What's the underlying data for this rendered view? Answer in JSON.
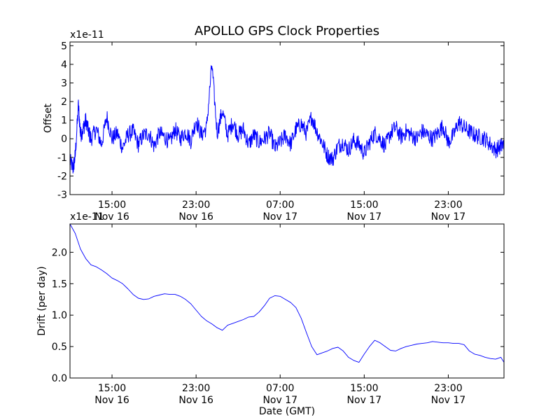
{
  "chart_data": [
    {
      "type": "line",
      "title": "APOLLO GPS Clock Properties",
      "ylabel": "Offset",
      "offset_text": "x1e-11",
      "xlabel": "",
      "x_unit": "hours",
      "xlim": [
        11,
        52.3
      ],
      "ylim": [
        -3,
        5.2
      ],
      "yticks": [
        -3,
        -2,
        -1,
        0,
        1,
        2,
        3,
        4,
        5
      ],
      "ytick_labels": [
        "-3",
        "-2",
        "-1",
        "0",
        "1",
        "2",
        "3",
        "4",
        "5"
      ],
      "xticks": [
        15,
        23,
        31,
        39,
        47
      ],
      "xtick_labels": [
        {
          "time": "15:00",
          "date": "Nov 16"
        },
        {
          "time": "23:00",
          "date": "Nov 16"
        },
        {
          "time": "07:00",
          "date": "Nov 17"
        },
        {
          "time": "15:00",
          "date": "Nov 17"
        },
        {
          "time": "23:00",
          "date": "Nov 17"
        }
      ],
      "color": "#0000ff",
      "grid": false,
      "series": [
        {
          "x": [
            11.0,
            11.3,
            11.5,
            11.8,
            12.0,
            12.3,
            12.5,
            12.8,
            13.0,
            13.5,
            14.0,
            14.5,
            15.0,
            15.5,
            16.0,
            16.5,
            17.0,
            17.5,
            18.0,
            18.5,
            19.0,
            19.5,
            20.0,
            20.5,
            21.0,
            21.5,
            22.0,
            22.5,
            23.0,
            23.5,
            24.0,
            24.5,
            25.0,
            25.5,
            26.0,
            26.5,
            27.0,
            27.5,
            28.0,
            28.5,
            29.0,
            29.5,
            30.0,
            30.5,
            31.0,
            31.5,
            32.0,
            32.5,
            33.0,
            33.5,
            34.0,
            34.5,
            35.0,
            35.5,
            36.0,
            36.5,
            37.0,
            37.5,
            38.0,
            38.5,
            39.0,
            39.5,
            40.0,
            40.5,
            41.0,
            41.5,
            42.0,
            42.5,
            43.0,
            43.5,
            44.0,
            44.5,
            45.0,
            45.5,
            46.0,
            46.5,
            47.0,
            47.5,
            48.0,
            48.5,
            49.0,
            49.5,
            50.0,
            50.5,
            51.0,
            51.5,
            52.0,
            52.3
          ],
          "y": [
            -1.2,
            -1.6,
            -0.9,
            1.8,
            0.2,
            0.6,
            1.0,
            0.3,
            0.0,
            0.5,
            -0.3,
            1.2,
            0.0,
            0.3,
            -0.5,
            0.2,
            0.4,
            -0.3,
            0.2,
            0.3,
            -0.4,
            0.3,
            0.1,
            -0.2,
            0.5,
            0.0,
            0.4,
            -0.1,
            1.0,
            0.2,
            0.6,
            4.0,
            0.3,
            1.5,
            0.2,
            0.9,
            0.2,
            0.5,
            -0.3,
            0.2,
            -0.2,
            0.0,
            0.3,
            -0.5,
            -0.2,
            0.2,
            -0.3,
            0.5,
            0.8,
            0.3,
            1.2,
            0.4,
            -0.2,
            -0.9,
            -1.1,
            -0.4,
            -0.2,
            -0.6,
            -0.1,
            -0.3,
            -0.8,
            -0.2,
            0.3,
            0.0,
            -0.4,
            0.3,
            0.6,
            0.1,
            0.4,
            0.2,
            0.0,
            0.4,
            0.2,
            0.0,
            0.3,
            0.7,
            -0.2,
            0.2,
            0.9,
            0.6,
            0.4,
            0.2,
            0.1,
            0.0,
            -0.3,
            -0.6,
            -0.4,
            -0.3
          ]
        }
      ]
    },
    {
      "type": "line",
      "title": "",
      "ylabel": "Drift (per day)",
      "offset_text": "x1e-11",
      "xlabel": "Date (GMT)",
      "x_unit": "hours",
      "xlim": [
        11,
        52.3
      ],
      "ylim": [
        0,
        2.45
      ],
      "yticks": [
        0.0,
        0.5,
        1.0,
        1.5,
        2.0
      ],
      "ytick_labels": [
        "0.0",
        "0.5",
        "1.0",
        "1.5",
        "2.0"
      ],
      "xticks": [
        15,
        23,
        31,
        39,
        47
      ],
      "xtick_labels": [
        {
          "time": "15:00",
          "date": "Nov 16"
        },
        {
          "time": "23:00",
          "date": "Nov 16"
        },
        {
          "time": "07:00",
          "date": "Nov 17"
        },
        {
          "time": "15:00",
          "date": "Nov 17"
        },
        {
          "time": "23:00",
          "date": "Nov 17"
        }
      ],
      "color": "#0000ff",
      "grid": false,
      "series": [
        {
          "x": [
            11.0,
            11.5,
            12.0,
            12.5,
            13.0,
            13.5,
            14.0,
            14.5,
            15.0,
            15.5,
            16.0,
            16.5,
            17.0,
            17.5,
            18.0,
            18.5,
            19.0,
            19.5,
            20.0,
            20.5,
            21.0,
            21.5,
            22.0,
            22.5,
            23.0,
            23.5,
            24.0,
            24.5,
            25.0,
            25.5,
            26.0,
            26.5,
            27.0,
            27.5,
            28.0,
            28.5,
            29.0,
            29.5,
            30.0,
            30.5,
            31.0,
            31.5,
            32.0,
            32.5,
            33.0,
            33.5,
            34.0,
            34.5,
            35.0,
            35.5,
            36.0,
            36.5,
            37.0,
            37.5,
            38.0,
            38.5,
            39.0,
            39.5,
            40.0,
            40.5,
            41.0,
            41.5,
            42.0,
            42.5,
            43.0,
            43.5,
            44.0,
            44.5,
            45.0,
            45.5,
            46.0,
            46.5,
            47.0,
            47.5,
            48.0,
            48.5,
            49.0,
            49.5,
            50.0,
            50.5,
            51.0,
            51.5,
            52.0,
            52.3
          ],
          "y": [
            2.45,
            2.3,
            2.05,
            1.9,
            1.8,
            1.77,
            1.72,
            1.66,
            1.59,
            1.55,
            1.5,
            1.42,
            1.33,
            1.27,
            1.25,
            1.26,
            1.3,
            1.32,
            1.34,
            1.33,
            1.33,
            1.3,
            1.25,
            1.18,
            1.08,
            0.98,
            0.91,
            0.86,
            0.8,
            0.76,
            0.84,
            0.87,
            0.9,
            0.93,
            0.97,
            0.98,
            1.05,
            1.15,
            1.27,
            1.31,
            1.3,
            1.25,
            1.2,
            1.12,
            0.95,
            0.72,
            0.5,
            0.37,
            0.4,
            0.43,
            0.47,
            0.49,
            0.43,
            0.33,
            0.28,
            0.25,
            0.38,
            0.5,
            0.6,
            0.56,
            0.5,
            0.44,
            0.43,
            0.47,
            0.5,
            0.52,
            0.54,
            0.55,
            0.56,
            0.58,
            0.57,
            0.56,
            0.56,
            0.55,
            0.55,
            0.53,
            0.43,
            0.38,
            0.36,
            0.33,
            0.31,
            0.3,
            0.33,
            0.25
          ]
        }
      ]
    }
  ]
}
